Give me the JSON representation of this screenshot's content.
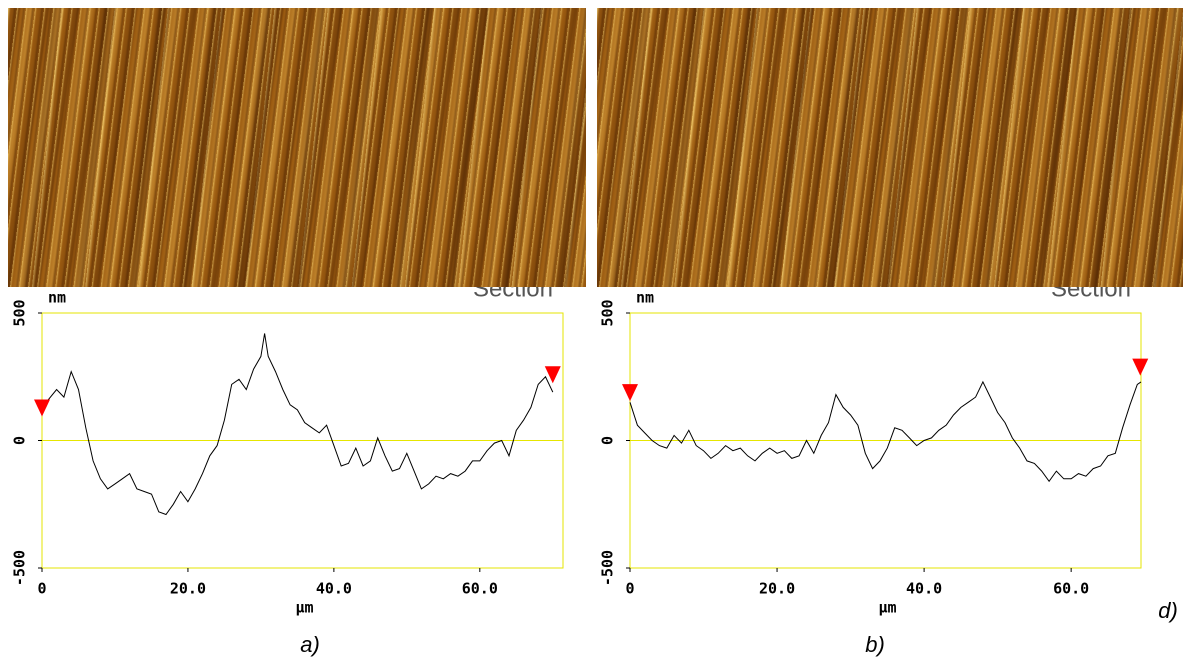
{
  "chart_data": [
    {
      "type": "line",
      "caption": "a)",
      "section_label": "Section",
      "y_label": "nm",
      "x_label": "μm",
      "xlim": [
        0,
        71.4
      ],
      "xticks": [
        0,
        {
          "value": 20,
          "label": "20.0"
        },
        {
          "value": 40,
          "label": "40.0"
        },
        {
          "value": 60,
          "label": "60.0"
        }
      ],
      "ylim": [
        -500,
        500
      ],
      "yticks": [
        -500,
        0,
        500
      ],
      "zero_line": true,
      "frame_color": "#e6e600",
      "x": [
        0,
        2,
        3,
        4,
        5,
        6,
        7,
        8,
        9,
        10,
        11,
        12,
        13,
        14,
        15,
        16,
        17,
        18,
        19,
        20,
        21,
        22,
        23,
        24,
        25,
        26,
        27,
        28,
        29,
        30,
        30.5,
        31,
        32,
        33,
        34,
        35,
        36,
        37,
        38,
        39,
        40,
        41,
        42,
        43,
        44,
        45,
        46,
        47,
        48,
        49,
        50,
        51,
        52,
        53,
        54,
        55,
        56,
        57,
        58,
        59,
        60,
        61,
        62,
        63,
        64,
        65,
        66,
        67,
        68,
        69,
        70
      ],
      "series": [
        {
          "color": "#000000",
          "values": [
            130,
            200,
            170,
            270,
            200,
            50,
            -80,
            -150,
            -190,
            -170,
            -150,
            -130,
            -190,
            -200,
            -210,
            -280,
            -290,
            -250,
            -200,
            -240,
            -190,
            -130,
            -60,
            -20,
            80,
            220,
            240,
            200,
            280,
            330,
            420,
            330,
            270,
            200,
            140,
            120,
            70,
            50,
            30,
            60,
            -20,
            -100,
            -90,
            -30,
            -100,
            -80,
            10,
            -60,
            -120,
            -110,
            -50,
            -120,
            -190,
            -170,
            -140,
            -150,
            -130,
            -140,
            -120,
            -80,
            -80,
            -40,
            -10,
            0,
            -60,
            40,
            80,
            130,
            220,
            250,
            190
          ]
        }
      ],
      "markers": {
        "color": "#ff0000",
        "x": [
          0,
          70
        ],
        "y": [
          110,
          240
        ]
      }
    },
    {
      "type": "line",
      "caption": "b)",
      "panel_note": "d)",
      "section_label": "Section",
      "y_label": "nm",
      "x_label": "μm",
      "xlim": [
        0,
        69.5
      ],
      "xticks": [
        0,
        {
          "value": 20,
          "label": "20.0"
        },
        {
          "value": 40,
          "label": "40.0"
        },
        {
          "value": 60,
          "label": "60.0"
        }
      ],
      "ylim": [
        -500,
        500
      ],
      "yticks": [
        -500,
        0,
        500
      ],
      "zero_line": true,
      "frame_color": "#e6e600",
      "x": [
        0,
        1,
        2,
        3,
        4,
        5,
        6,
        7,
        8,
        9,
        10,
        11,
        12,
        13,
        14,
        15,
        16,
        17,
        18,
        19,
        20,
        21,
        22,
        23,
        24,
        25,
        26,
        27,
        28,
        29,
        30,
        31,
        32,
        33,
        34,
        35,
        36,
        37,
        38,
        39,
        40,
        41,
        42,
        43,
        44,
        45,
        46,
        47,
        48,
        49,
        50,
        51,
        52,
        53,
        54,
        55,
        56,
        57,
        58,
        59,
        60,
        61,
        62,
        63,
        64,
        65,
        66,
        67,
        68,
        69,
        69.5
      ],
      "series": [
        {
          "color": "#000000",
          "values": [
            150,
            60,
            30,
            0,
            -20,
            -30,
            20,
            -10,
            40,
            -20,
            -40,
            -70,
            -50,
            -20,
            -40,
            -30,
            -60,
            -80,
            -50,
            -30,
            -50,
            -40,
            -70,
            -60,
            0,
            -50,
            20,
            70,
            180,
            130,
            100,
            60,
            -50,
            -110,
            -80,
            -30,
            50,
            40,
            10,
            -20,
            0,
            10,
            40,
            60,
            100,
            130,
            150,
            170,
            230,
            170,
            110,
            70,
            10,
            -30,
            -80,
            -90,
            -120,
            -160,
            -120,
            -150,
            -150,
            -130,
            -140,
            -110,
            -100,
            -60,
            -50,
            50,
            140,
            220,
            230
          ]
        }
      ],
      "markers": {
        "color": "#ff0000",
        "x": [
          0,
          69.4
        ],
        "y": [
          170,
          270
        ]
      }
    }
  ]
}
